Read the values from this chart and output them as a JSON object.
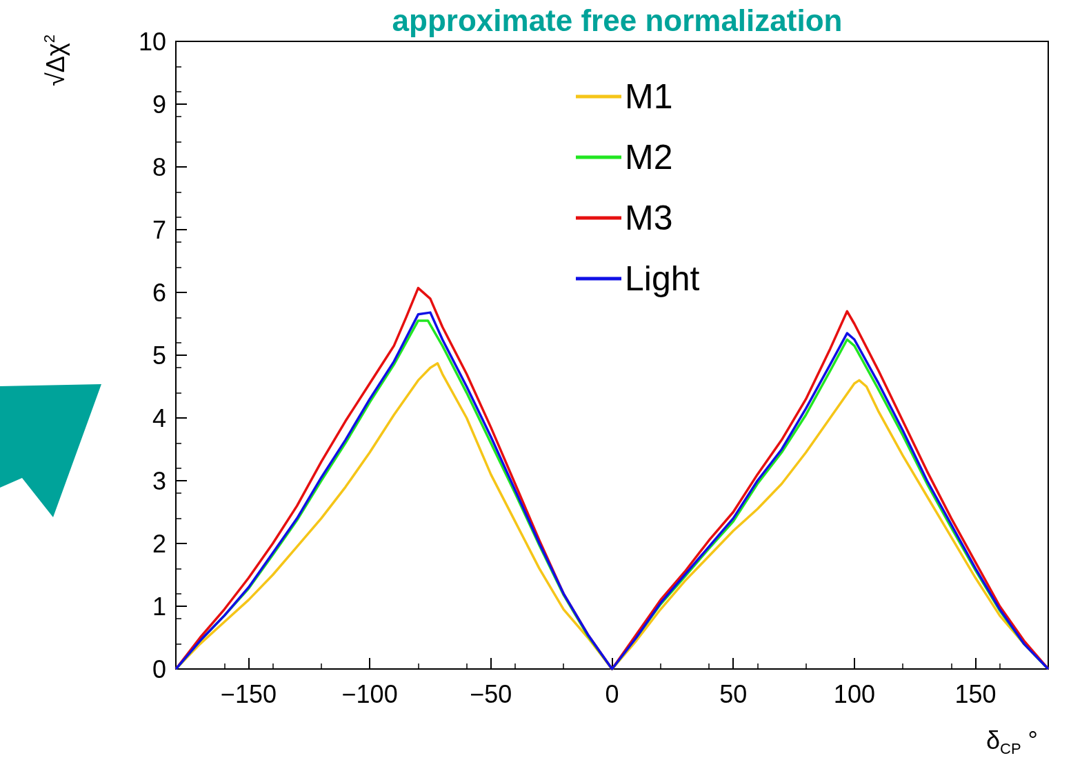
{
  "chart_data": {
    "type": "line",
    "title": "approximate free normalization",
    "xlabel": "δ$_{CP}$ °",
    "ylabel": "√Δχ$^{2}$",
    "xlim": [
      -180,
      180
    ],
    "xticks": [
      -150,
      -100,
      -50,
      0,
      50,
      100,
      150
    ],
    "ylim": [
      0,
      10
    ],
    "yticks": [
      0,
      1,
      2,
      3,
      4,
      5,
      6,
      7,
      8,
      9,
      10
    ],
    "legend": "top",
    "marker": "none",
    "line_style": "solid",
    "series": [
      {
        "name": "M1",
        "color": "#f5c518",
        "x": [
          -180,
          -170,
          -160,
          -150,
          -140,
          -130,
          -120,
          -110,
          -100,
          -90,
          -80,
          -75,
          -72,
          -70,
          -60,
          -50,
          -40,
          -30,
          -20,
          -10,
          0,
          10,
          20,
          30,
          40,
          50,
          60,
          70,
          80,
          90,
          100,
          102,
          105,
          110,
          120,
          130,
          140,
          150,
          160,
          170,
          180
        ],
        "values": [
          0,
          0.4,
          0.75,
          1.1,
          1.5,
          1.95,
          2.4,
          2.9,
          3.45,
          4.05,
          4.6,
          4.8,
          4.87,
          4.7,
          4.0,
          3.1,
          2.35,
          1.6,
          0.95,
          0.5,
          0,
          0.45,
          0.95,
          1.4,
          1.8,
          2.2,
          2.55,
          2.95,
          3.45,
          4.0,
          4.55,
          4.6,
          4.5,
          4.1,
          3.4,
          2.75,
          2.1,
          1.45,
          0.85,
          0.4,
          0
        ]
      },
      {
        "name": "M2",
        "color": "#22e622",
        "x": [
          -180,
          -170,
          -160,
          -150,
          -140,
          -130,
          -120,
          -110,
          -100,
          -90,
          -80,
          -76,
          -70,
          -60,
          -50,
          -40,
          -30,
          -20,
          -10,
          0,
          10,
          20,
          30,
          40,
          50,
          60,
          70,
          80,
          90,
          97,
          100,
          110,
          120,
          130,
          140,
          150,
          160,
          170,
          180
        ],
        "values": [
          0,
          0.45,
          0.85,
          1.28,
          1.82,
          2.37,
          3.0,
          3.6,
          4.25,
          4.85,
          5.55,
          5.55,
          5.15,
          4.4,
          3.6,
          2.8,
          1.97,
          1.18,
          0.53,
          0,
          0.5,
          1.03,
          1.47,
          1.92,
          2.35,
          2.95,
          3.45,
          4.05,
          4.75,
          5.25,
          5.15,
          4.45,
          3.72,
          2.95,
          2.25,
          1.57,
          0.93,
          0.4,
          0
        ]
      },
      {
        "name": "M3",
        "color": "#e61010",
        "x": [
          -180,
          -170,
          -160,
          -150,
          -140,
          -130,
          -120,
          -110,
          -100,
          -90,
          -85,
          -80,
          -75,
          -70,
          -60,
          -50,
          -40,
          -30,
          -20,
          -10,
          0,
          10,
          20,
          30,
          40,
          50,
          60,
          70,
          80,
          90,
          97,
          100,
          110,
          120,
          130,
          140,
          150,
          160,
          170,
          180
        ],
        "values": [
          0,
          0.5,
          0.95,
          1.45,
          2.0,
          2.6,
          3.3,
          3.95,
          4.55,
          5.15,
          5.6,
          6.07,
          5.9,
          5.45,
          4.7,
          3.85,
          2.95,
          2.05,
          1.2,
          0.55,
          0,
          0.55,
          1.1,
          1.55,
          2.05,
          2.5,
          3.1,
          3.65,
          4.3,
          5.1,
          5.7,
          5.5,
          4.75,
          3.95,
          3.15,
          2.4,
          1.7,
          1.0,
          0.45,
          0
        ]
      },
      {
        "name": "Light",
        "color": "#1010e6",
        "x": [
          -180,
          -170,
          -160,
          -150,
          -140,
          -130,
          -120,
          -110,
          -100,
          -90,
          -80,
          -75,
          -70,
          -60,
          -50,
          -40,
          -30,
          -20,
          -10,
          0,
          10,
          20,
          30,
          40,
          50,
          60,
          70,
          80,
          90,
          97,
          100,
          110,
          120,
          130,
          140,
          150,
          160,
          170,
          180
        ],
        "values": [
          0,
          0.45,
          0.85,
          1.3,
          1.85,
          2.4,
          3.05,
          3.65,
          4.3,
          4.9,
          5.65,
          5.68,
          5.25,
          4.5,
          3.7,
          2.85,
          2.0,
          1.2,
          0.55,
          0,
          0.5,
          1.05,
          1.5,
          1.95,
          2.4,
          3.0,
          3.5,
          4.15,
          4.85,
          5.35,
          5.25,
          4.55,
          3.8,
          3.0,
          2.3,
          1.6,
          0.95,
          0.4,
          0
        ]
      }
    ]
  }
}
